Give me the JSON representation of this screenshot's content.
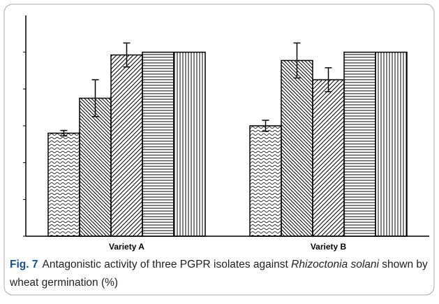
{
  "chart_data": {
    "type": "bar",
    "categories": [
      "Variety A",
      "Variety B"
    ],
    "series": [
      {
        "pattern": "wave",
        "color": "#000000",
        "values": [
          56,
          60
        ],
        "errors": [
          1.5,
          3
        ]
      },
      {
        "pattern": "back",
        "color": "#000000",
        "values": [
          75,
          95.5
        ],
        "errors": [
          10,
          9.5
        ]
      },
      {
        "pattern": "fwd",
        "color": "#000000",
        "values": [
          98.5,
          85
        ],
        "errors": [
          6.5,
          6.5
        ]
      },
      {
        "pattern": "horiz",
        "color": "#000000",
        "values": [
          100,
          100
        ],
        "errors": [
          0,
          0
        ]
      },
      {
        "pattern": "vert",
        "color": "#000000",
        "values": [
          100,
          100
        ],
        "errors": [
          0,
          0
        ]
      }
    ],
    "ylim": [
      0,
      120
    ],
    "yticks": [
      0,
      20,
      40,
      60,
      80,
      100
    ]
  },
  "caption": {
    "label": "Fig. 7",
    "text": "Antagonistic activity of three PGPR isolates against ",
    "italic": "Rhizoctonia solani",
    "tail": " shown by wheat germination (%)"
  }
}
